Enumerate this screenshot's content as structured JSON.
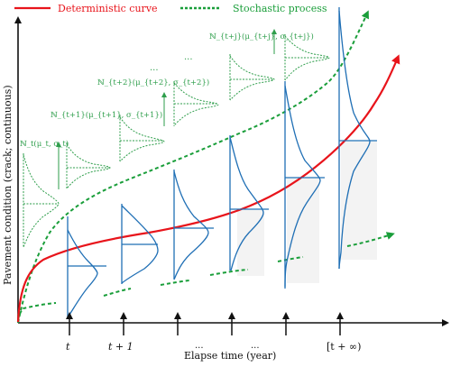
{
  "legend": {
    "deterministic_label": "Deterministic curve",
    "stochastic_label": "Stochastic process"
  },
  "axes": {
    "x_label": "Elapse time (year)",
    "y_label": "Pavement condition (crack; continuous)"
  },
  "distributions": [
    "ℕ_t(μ_t, σ_t)",
    "ℕ_{t+1}(μ_{t+1}, σ_{t+1})",
    "ℕ_{t+2}(μ_{t+2}, σ_{t+2})",
    "ℕ_{t+j}(μ_{t+j}, σ_{t+j})"
  ],
  "ellipsis": "...",
  "ticks": [
    "t",
    "t + 1",
    "...",
    "...",
    "[t + ∞)"
  ],
  "colors": {
    "deterministic": "#e8141b",
    "stochastic": "#1a9e3a",
    "pdf_green": "#2e9e4b",
    "pdf_blue": "#1f6fb5",
    "axis": "#111111"
  }
}
